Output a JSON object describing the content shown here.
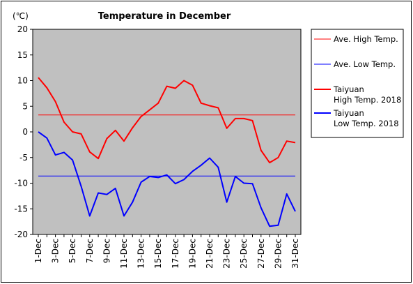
{
  "chart_data": {
    "type": "line",
    "title": "Temperature in December",
    "unit_label": "(℃)",
    "ylim": [
      -20,
      20
    ],
    "y_ticks": [
      20,
      15,
      10,
      5,
      0,
      -5,
      -10,
      -15,
      -20
    ],
    "y_tick_labels": [
      "20",
      "15",
      "10",
      "5",
      "0",
      "-5",
      "-10",
      "-15",
      "-20"
    ],
    "grid": false,
    "legend_position": "right",
    "x_tick_labels": [
      "1-Dec",
      "3-Dec",
      "5-Dec",
      "7-Dec",
      "9-Dec",
      "11-Dec",
      "13-Dec",
      "15-Dec",
      "17-Dec",
      "19-Dec",
      "21-Dec",
      "23-Dec",
      "25-Dec",
      "27-Dec",
      "29-Dec",
      "31-Dec"
    ],
    "x": [
      1,
      2,
      3,
      4,
      5,
      6,
      7,
      8,
      9,
      10,
      11,
      12,
      13,
      14,
      15,
      16,
      17,
      18,
      19,
      20,
      21,
      22,
      23,
      24,
      25,
      26,
      27,
      28,
      29,
      30,
      31
    ],
    "series": [
      {
        "name": "Ave. High Temp.",
        "color": "#ff0000",
        "width": "thin",
        "values": [
          3.3,
          3.3,
          3.3,
          3.3,
          3.3,
          3.3,
          3.3,
          3.3,
          3.3,
          3.3,
          3.3,
          3.3,
          3.3,
          3.3,
          3.3,
          3.3,
          3.3,
          3.3,
          3.3,
          3.3,
          3.3,
          3.3,
          3.3,
          3.3,
          3.3,
          3.3,
          3.3,
          3.3,
          3.3,
          3.3,
          3.3
        ]
      },
      {
        "name": "Ave. Low Temp.",
        "color": "#0000ff",
        "width": "thin",
        "values": [
          -8.6,
          -8.6,
          -8.6,
          -8.6,
          -8.6,
          -8.6,
          -8.6,
          -8.6,
          -8.6,
          -8.6,
          -8.6,
          -8.6,
          -8.6,
          -8.6,
          -8.6,
          -8.6,
          -8.6,
          -8.6,
          -8.6,
          -8.6,
          -8.6,
          -8.6,
          -8.6,
          -8.6,
          -8.6,
          -8.6,
          -8.6,
          -8.6,
          -8.6,
          -8.6,
          -8.6
        ]
      },
      {
        "name": "Taiyuan High Temp. 2018",
        "name_lines": [
          "Taiyuan",
          "High Temp. 2018"
        ],
        "color": "#ff0000",
        "width": "thick",
        "values": [
          10.6,
          8.6,
          5.9,
          1.9,
          0.0,
          -0.4,
          -3.9,
          -5.2,
          -1.3,
          0.3,
          -1.8,
          0.8,
          3.0,
          4.3,
          5.6,
          8.9,
          8.5,
          10.0,
          9.1,
          5.6,
          5.1,
          4.7,
          0.7,
          2.6,
          2.6,
          2.2,
          -3.6,
          -6.0,
          -5.0,
          -1.8,
          -2.1
        ]
      },
      {
        "name": "Taiyuan Low Temp. 2018",
        "name_lines": [
          "Taiyuan",
          "Low Temp. 2018"
        ],
        "color": "#0000ff",
        "width": "thick",
        "values": [
          0.0,
          -1.2,
          -4.5,
          -4.0,
          -5.5,
          -10.6,
          -16.4,
          -11.9,
          -12.2,
          -11.0,
          -16.4,
          -13.7,
          -9.8,
          -8.7,
          -8.9,
          -8.4,
          -10.1,
          -9.3,
          -7.7,
          -6.5,
          -5.1,
          -6.9,
          -13.7,
          -8.7,
          -10.0,
          -10.1,
          -14.8,
          -18.4,
          -18.2,
          -12.1,
          -15.5
        ]
      }
    ]
  }
}
